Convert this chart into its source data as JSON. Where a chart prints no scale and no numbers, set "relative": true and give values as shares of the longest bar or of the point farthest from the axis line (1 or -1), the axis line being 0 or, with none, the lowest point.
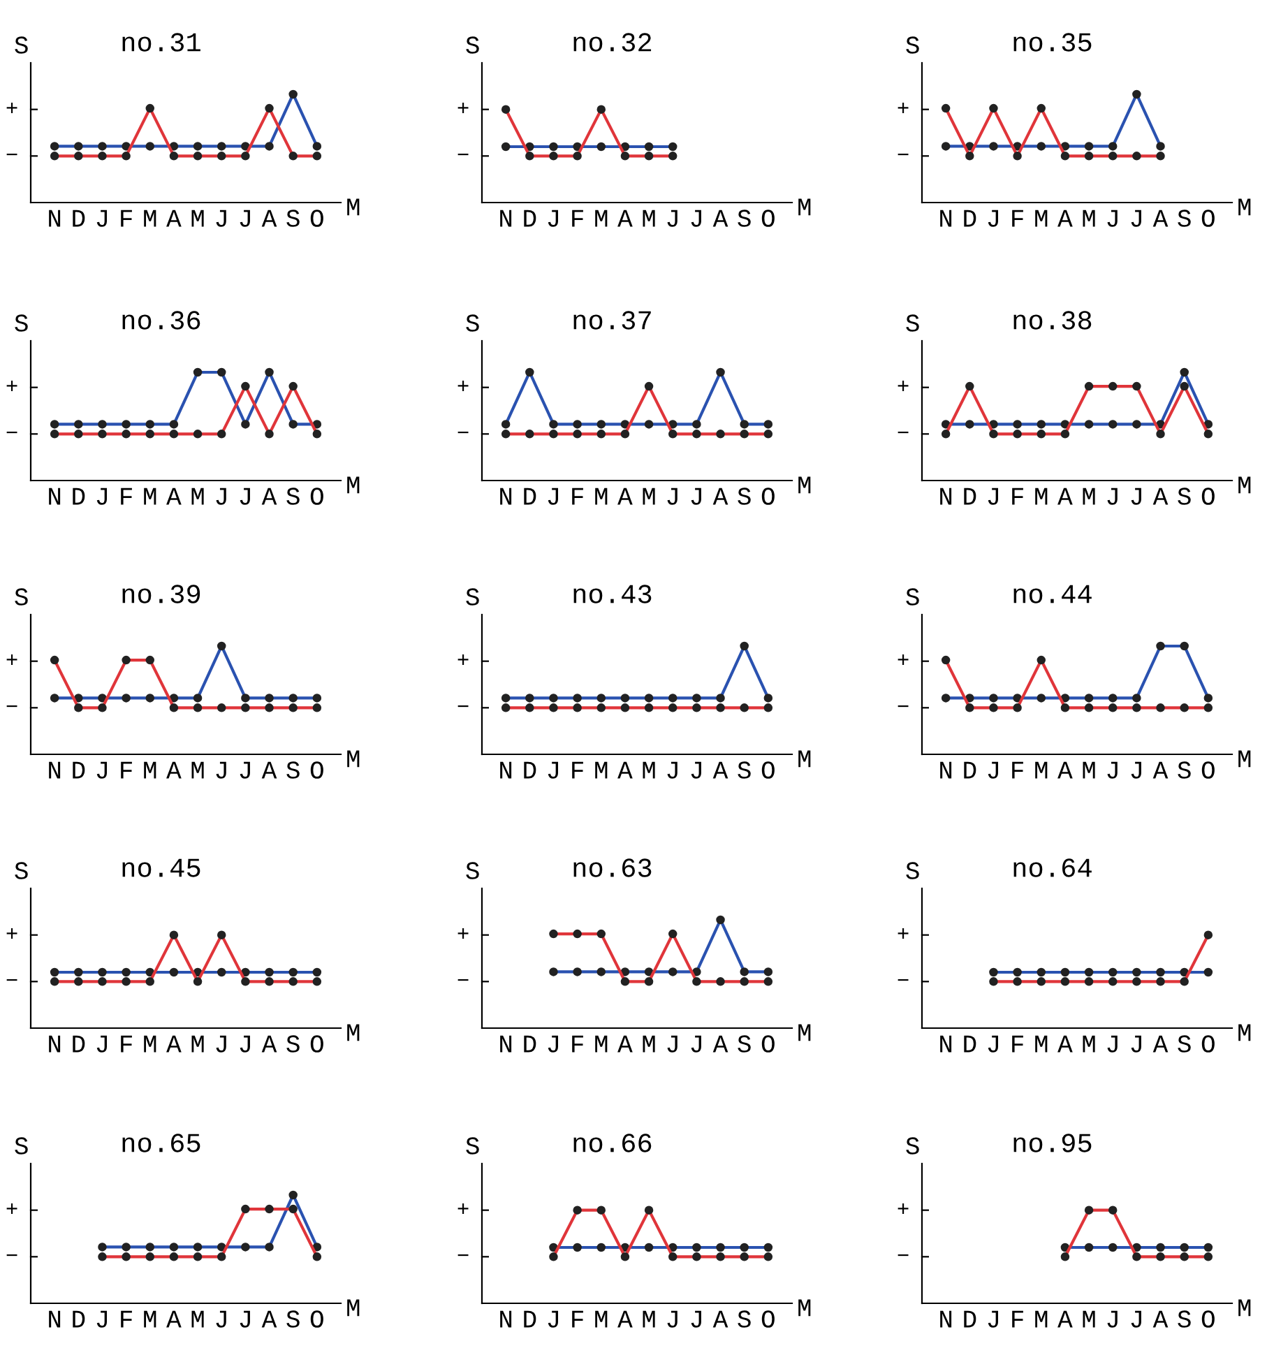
{
  "chart_data": [
    {
      "type": "line",
      "relative": true,
      "title": "no.31",
      "xlabel": "M",
      "ylabel": "S",
      "categories": [
        "N",
        "D",
        "J",
        "F",
        "M",
        "A",
        "M",
        "J",
        "J",
        "A",
        "S",
        "O"
      ],
      "annotations": [
        "+",
        "−"
      ],
      "marker": "circle",
      "series": [
        {
          "color": "#2a52b0",
          "values": [
            0.52,
            0.52,
            0.52,
            0.52,
            0.52,
            0.52,
            0.52,
            0.52,
            0.52,
            0.52,
            1,
            0.52
          ]
        },
        {
          "color": "#e0353a",
          "values": [
            0.43,
            0.43,
            0.43,
            0.43,
            0.87,
            0.43,
            0.43,
            0.43,
            0.43,
            0.87,
            0.43,
            0.43
          ]
        }
      ]
    },
    {
      "type": "line",
      "relative": true,
      "title": "no.32",
      "xlabel": "M",
      "ylabel": "S",
      "categories": [
        "N",
        "D",
        "J",
        "F",
        "M",
        "A",
        "M",
        "J",
        "J",
        "A",
        "S",
        "O"
      ],
      "annotations": [
        "+",
        "−"
      ],
      "marker": "circle",
      "series": [
        {
          "color": "#2a52b0",
          "values": [
            0.6,
            0.6,
            0.6,
            0.6,
            0.6,
            0.6,
            0.6,
            0.6,
            null,
            null,
            null,
            null
          ]
        },
        {
          "color": "#e0353a",
          "values": [
            1,
            0.5,
            0.5,
            0.5,
            1,
            0.5,
            0.5,
            0.5,
            null,
            null,
            null,
            null
          ]
        }
      ]
    },
    {
      "type": "line",
      "relative": true,
      "title": "no.35",
      "xlabel": "M",
      "ylabel": "S",
      "categories": [
        "N",
        "D",
        "J",
        "F",
        "M",
        "A",
        "M",
        "J",
        "J",
        "A",
        "S",
        "O"
      ],
      "annotations": [
        "+",
        "−"
      ],
      "marker": "circle",
      "series": [
        {
          "color": "#2a52b0",
          "values": [
            0.52,
            0.52,
            0.52,
            0.52,
            0.52,
            0.52,
            0.52,
            0.52,
            1,
            0.52,
            null,
            null
          ]
        },
        {
          "color": "#e0353a",
          "values": [
            0.87,
            0.43,
            0.87,
            0.43,
            0.87,
            0.43,
            0.43,
            0.43,
            0.43,
            0.43,
            null,
            null
          ]
        }
      ]
    },
    {
      "type": "line",
      "relative": true,
      "title": "no.36",
      "xlabel": "M",
      "ylabel": "S",
      "categories": [
        "N",
        "D",
        "J",
        "F",
        "M",
        "A",
        "M",
        "J",
        "J",
        "A",
        "S",
        "O"
      ],
      "annotations": [
        "+",
        "−"
      ],
      "marker": "circle",
      "series": [
        {
          "color": "#2a52b0",
          "values": [
            0.52,
            0.52,
            0.52,
            0.52,
            0.52,
            0.52,
            1,
            1,
            0.52,
            1,
            0.52,
            0.52
          ]
        },
        {
          "color": "#e0353a",
          "values": [
            0.43,
            0.43,
            0.43,
            0.43,
            0.43,
            0.43,
            0.43,
            0.43,
            0.87,
            0.43,
            0.87,
            0.43
          ]
        }
      ]
    },
    {
      "type": "line",
      "relative": true,
      "title": "no.37",
      "xlabel": "M",
      "ylabel": "S",
      "categories": [
        "N",
        "D",
        "J",
        "F",
        "M",
        "A",
        "M",
        "J",
        "J",
        "A",
        "S",
        "O"
      ],
      "annotations": [
        "+",
        "−"
      ],
      "marker": "circle",
      "series": [
        {
          "color": "#2a52b0",
          "values": [
            0.52,
            1,
            0.52,
            0.52,
            0.52,
            0.52,
            0.52,
            0.52,
            0.52,
            1,
            0.52,
            0.52
          ]
        },
        {
          "color": "#e0353a",
          "values": [
            0.43,
            0.43,
            0.43,
            0.43,
            0.43,
            0.43,
            0.87,
            0.43,
            0.43,
            0.43,
            0.43,
            0.43
          ]
        }
      ]
    },
    {
      "type": "line",
      "relative": true,
      "title": "no.38",
      "xlabel": "M",
      "ylabel": "S",
      "categories": [
        "N",
        "D",
        "J",
        "F",
        "M",
        "A",
        "M",
        "J",
        "J",
        "A",
        "S",
        "O"
      ],
      "annotations": [
        "+",
        "−"
      ],
      "marker": "circle",
      "series": [
        {
          "color": "#2a52b0",
          "values": [
            0.52,
            0.52,
            0.52,
            0.52,
            0.52,
            0.52,
            0.52,
            0.52,
            0.52,
            0.52,
            1,
            0.52
          ]
        },
        {
          "color": "#e0353a",
          "values": [
            0.43,
            0.87,
            0.43,
            0.43,
            0.43,
            0.43,
            0.87,
            0.87,
            0.87,
            0.43,
            0.87,
            0.43
          ]
        }
      ]
    },
    {
      "type": "line",
      "relative": true,
      "title": "no.39",
      "xlabel": "M",
      "ylabel": "S",
      "categories": [
        "N",
        "D",
        "J",
        "F",
        "M",
        "A",
        "M",
        "J",
        "J",
        "A",
        "S",
        "O"
      ],
      "annotations": [
        "+",
        "−"
      ],
      "marker": "circle",
      "series": [
        {
          "color": "#2a52b0",
          "values": [
            0.52,
            0.52,
            0.52,
            0.52,
            0.52,
            0.52,
            0.52,
            1,
            0.52,
            0.52,
            0.52,
            0.52
          ]
        },
        {
          "color": "#e0353a",
          "values": [
            0.87,
            0.43,
            0.43,
            0.87,
            0.87,
            0.43,
            0.43,
            0.43,
            0.43,
            0.43,
            0.43,
            0.43
          ]
        }
      ]
    },
    {
      "type": "line",
      "relative": true,
      "title": "no.43",
      "xlabel": "M",
      "ylabel": "S",
      "categories": [
        "N",
        "D",
        "J",
        "F",
        "M",
        "A",
        "M",
        "J",
        "J",
        "A",
        "S",
        "O"
      ],
      "annotations": [
        "+",
        "−"
      ],
      "marker": "circle",
      "series": [
        {
          "color": "#2a52b0",
          "values": [
            0.52,
            0.52,
            0.52,
            0.52,
            0.52,
            0.52,
            0.52,
            0.52,
            0.52,
            0.52,
            1,
            0.52
          ]
        },
        {
          "color": "#e0353a",
          "values": [
            0.43,
            0.43,
            0.43,
            0.43,
            0.43,
            0.43,
            0.43,
            0.43,
            0.43,
            0.43,
            0.43,
            0.43
          ]
        }
      ]
    },
    {
      "type": "line",
      "relative": true,
      "title": "no.44",
      "xlabel": "M",
      "ylabel": "S",
      "categories": [
        "N",
        "D",
        "J",
        "F",
        "M",
        "A",
        "M",
        "J",
        "J",
        "A",
        "S",
        "O"
      ],
      "annotations": [
        "+",
        "−"
      ],
      "marker": "circle",
      "series": [
        {
          "color": "#2a52b0",
          "values": [
            0.52,
            0.52,
            0.52,
            0.52,
            0.52,
            0.52,
            0.52,
            0.52,
            0.52,
            1,
            1,
            0.52
          ]
        },
        {
          "color": "#e0353a",
          "values": [
            0.87,
            0.43,
            0.43,
            0.43,
            0.87,
            0.43,
            0.43,
            0.43,
            0.43,
            0.43,
            0.43,
            0.43
          ]
        }
      ]
    },
    {
      "type": "line",
      "relative": true,
      "title": "no.45",
      "xlabel": "M",
      "ylabel": "S",
      "categories": [
        "N",
        "D",
        "J",
        "F",
        "M",
        "A",
        "M",
        "J",
        "J",
        "A",
        "S",
        "O"
      ],
      "annotations": [
        "+",
        "−"
      ],
      "marker": "circle",
      "series": [
        {
          "color": "#2a52b0",
          "values": [
            0.6,
            0.6,
            0.6,
            0.6,
            0.6,
            0.6,
            0.6,
            0.6,
            0.6,
            0.6,
            0.6,
            0.6
          ]
        },
        {
          "color": "#e0353a",
          "values": [
            0.5,
            0.5,
            0.5,
            0.5,
            0.5,
            1,
            0.5,
            1,
            0.5,
            0.5,
            0.5,
            0.5
          ]
        }
      ]
    },
    {
      "type": "line",
      "relative": true,
      "title": "no.63",
      "xlabel": "M",
      "ylabel": "S",
      "categories": [
        "N",
        "D",
        "J",
        "F",
        "M",
        "A",
        "M",
        "J",
        "J",
        "A",
        "S",
        "O"
      ],
      "annotations": [
        "+",
        "−"
      ],
      "marker": "circle",
      "series": [
        {
          "color": "#2a52b0",
          "values": [
            null,
            null,
            0.52,
            0.52,
            0.52,
            0.52,
            0.52,
            0.52,
            0.52,
            1,
            0.52,
            0.52
          ]
        },
        {
          "color": "#e0353a",
          "values": [
            null,
            null,
            0.87,
            0.87,
            0.87,
            0.43,
            0.43,
            0.87,
            0.43,
            0.43,
            0.43,
            0.43
          ]
        }
      ]
    },
    {
      "type": "line",
      "relative": true,
      "title": "no.64",
      "xlabel": "M",
      "ylabel": "S",
      "categories": [
        "N",
        "D",
        "J",
        "F",
        "M",
        "A",
        "M",
        "J",
        "J",
        "A",
        "S",
        "O"
      ],
      "annotations": [
        "+",
        "−"
      ],
      "marker": "circle",
      "series": [
        {
          "color": "#2a52b0",
          "values": [
            null,
            null,
            0.6,
            0.6,
            0.6,
            0.6,
            0.6,
            0.6,
            0.6,
            0.6,
            0.6,
            0.6
          ]
        },
        {
          "color": "#e0353a",
          "values": [
            null,
            null,
            0.5,
            0.5,
            0.5,
            0.5,
            0.5,
            0.5,
            0.5,
            0.5,
            0.5,
            1
          ]
        }
      ]
    },
    {
      "type": "line",
      "relative": true,
      "title": "no.65",
      "xlabel": "M",
      "ylabel": "S",
      "categories": [
        "N",
        "D",
        "J",
        "F",
        "M",
        "A",
        "M",
        "J",
        "J",
        "A",
        "S",
        "O"
      ],
      "annotations": [
        "+",
        "−"
      ],
      "marker": "circle",
      "series": [
        {
          "color": "#2a52b0",
          "values": [
            null,
            null,
            0.52,
            0.52,
            0.52,
            0.52,
            0.52,
            0.52,
            0.52,
            0.52,
            1,
            0.52
          ]
        },
        {
          "color": "#e0353a",
          "values": [
            null,
            null,
            0.43,
            0.43,
            0.43,
            0.43,
            0.43,
            0.43,
            0.87,
            0.87,
            0.87,
            0.43
          ]
        }
      ]
    },
    {
      "type": "line",
      "relative": true,
      "title": "no.66",
      "xlabel": "M",
      "ylabel": "S",
      "categories": [
        "N",
        "D",
        "J",
        "F",
        "M",
        "A",
        "M",
        "J",
        "J",
        "A",
        "S",
        "O"
      ],
      "annotations": [
        "+",
        "−"
      ],
      "marker": "circle",
      "series": [
        {
          "color": "#2a52b0",
          "values": [
            null,
            null,
            0.6,
            0.6,
            0.6,
            0.6,
            0.6,
            0.6,
            0.6,
            0.6,
            0.6,
            0.6
          ]
        },
        {
          "color": "#e0353a",
          "values": [
            null,
            null,
            0.5,
            1,
            1,
            0.5,
            1,
            0.5,
            0.5,
            0.5,
            0.5,
            0.5
          ]
        }
      ]
    },
    {
      "type": "line",
      "relative": true,
      "title": "no.95",
      "xlabel": "M",
      "ylabel": "S",
      "categories": [
        "N",
        "D",
        "J",
        "F",
        "M",
        "A",
        "M",
        "J",
        "J",
        "A",
        "S",
        "O"
      ],
      "annotations": [
        "+",
        "−"
      ],
      "marker": "circle",
      "series": [
        {
          "color": "#2a52b0",
          "values": [
            null,
            null,
            null,
            null,
            null,
            0.6,
            0.6,
            0.6,
            0.6,
            0.6,
            0.6,
            0.6
          ]
        },
        {
          "color": "#e0353a",
          "values": [
            null,
            null,
            null,
            null,
            null,
            0.5,
            1,
            1,
            0.5,
            0.5,
            0.5,
            0.5
          ]
        }
      ]
    }
  ]
}
